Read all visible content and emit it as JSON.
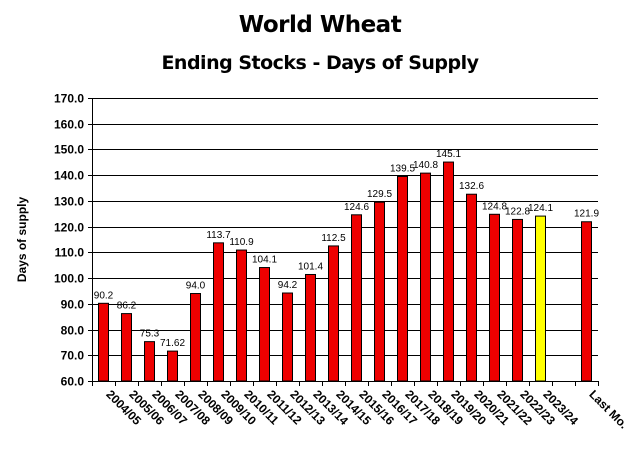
{
  "chart_data": {
    "type": "bar",
    "title": "World Wheat",
    "subtitle": "Ending Stocks - Days of Supply",
    "xlabel": "",
    "ylabel": "Days of supply",
    "ylim": [
      60.0,
      170.0
    ],
    "yticks": [
      "60.0",
      "70.0",
      "80.0",
      "90.0",
      "100.0",
      "110.0",
      "120.0",
      "130.0",
      "140.0",
      "150.0",
      "160.0",
      "170.0"
    ],
    "grid": true,
    "legend": null,
    "categories": [
      "2004/05",
      "2005/06",
      "2006/07",
      "2007/08",
      "2008/09",
      "2009/10",
      "2010/11",
      "2011/12",
      "2012/13",
      "2013/14",
      "2014/15",
      "2015/16",
      "2016/17",
      "2017/18",
      "2018/19",
      "2019/20",
      "2020/21",
      "2021/22",
      "2022/23",
      "2023/24",
      "",
      "Last Mo."
    ],
    "values": [
      90.2,
      86.2,
      75.3,
      71.62,
      94.0,
      113.7,
      110.9,
      104.1,
      94.2,
      101.4,
      112.5,
      124.6,
      129.5,
      139.5,
      140.8,
      145.1,
      132.6,
      124.8,
      122.8,
      124.1,
      null,
      121.9
    ],
    "labels": [
      "90.2",
      "86.2",
      "75.3",
      "71.62",
      "94.0",
      "113.7",
      "110.9",
      "104.1",
      "94.2",
      "101.4",
      "112.5",
      "124.6",
      "129.5",
      "139.5",
      "140.8",
      "145.1",
      "132.6",
      "124.8",
      "122.8",
      "124.1",
      "",
      "121.9"
    ],
    "colors": {
      "default_bar": "#ee0000",
      "highlight_bar": "#ffff00",
      "highlight_category": "2023/24"
    }
  }
}
